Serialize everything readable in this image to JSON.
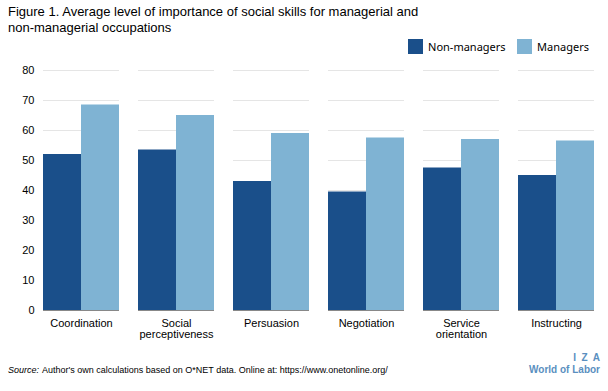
{
  "chart_data": {
    "type": "bar",
    "title": "Figure 1. Average level of importance of social skills for managerial and\nnon-managerial occupations",
    "categories": [
      "Coordination",
      "Social\nperceptiveness",
      "Persuasion",
      "Negotiation",
      "Service\norientation",
      "Instructing"
    ],
    "series": [
      {
        "name": "Non-managers",
        "color": "#1a4f8a",
        "values": [
          52,
          53.5,
          43,
          39.5,
          47.5,
          45
        ]
      },
      {
        "name": "Managers",
        "color": "#7fb3d3",
        "values": [
          68.5,
          65,
          59,
          57.5,
          57,
          56.5
        ]
      }
    ],
    "ylim": [
      0,
      80
    ],
    "yticks": [
      0,
      10,
      20,
      30,
      40,
      50,
      60,
      70,
      80
    ],
    "grid": true,
    "legend": "upper right",
    "annotations": [
      {
        "text": "Source:"
      },
      {
        "text": "Author's own calculations based on O*NET data. Online at: https://www.onetonline.org/"
      },
      {
        "text": "I  Z  A",
        "color": "#5a8fc0"
      },
      {
        "text": "World of Labor",
        "color": "#5a8fc0"
      }
    ]
  }
}
